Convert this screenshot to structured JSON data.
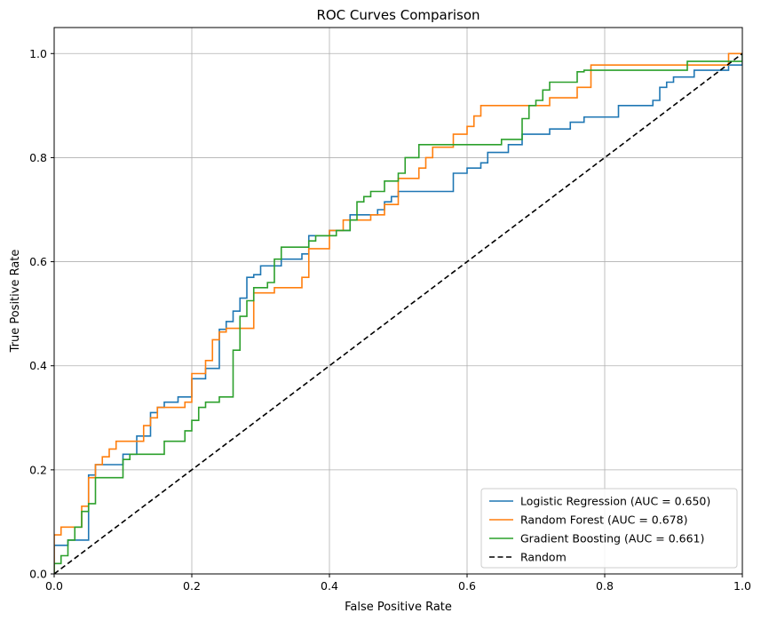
{
  "chart_data": {
    "type": "line",
    "title": "ROC Curves Comparison",
    "xlabel": "False Positive Rate",
    "ylabel": "True Positive Rate",
    "xlim": [
      0.0,
      1.0
    ],
    "ylim": [
      0.0,
      1.05
    ],
    "xticks": [
      "0.0",
      "0.2",
      "0.4",
      "0.6",
      "0.8",
      "1.0"
    ],
    "yticks": [
      "0.0",
      "0.2",
      "0.4",
      "0.6",
      "0.8",
      "1.0"
    ],
    "xtick_values": [
      0.0,
      0.2,
      0.4,
      0.6,
      0.8,
      1.0
    ],
    "ytick_values": [
      0.0,
      0.2,
      0.4,
      0.6,
      0.8,
      1.0
    ],
    "grid": true,
    "legend_position": "lower-right",
    "series": [
      {
        "name": "Logistic Regression (AUC = 0.650)",
        "color": "#1f77b4",
        "style": "solid",
        "x": [
          0.0,
          0.0,
          0.02,
          0.02,
          0.03,
          0.03,
          0.05,
          0.05,
          0.06,
          0.06,
          0.07,
          0.07,
          0.1,
          0.1,
          0.12,
          0.12,
          0.14,
          0.14,
          0.15,
          0.15,
          0.16,
          0.16,
          0.18,
          0.18,
          0.2,
          0.2,
          0.22,
          0.22,
          0.24,
          0.24,
          0.25,
          0.25,
          0.26,
          0.26,
          0.27,
          0.27,
          0.28,
          0.28,
          0.29,
          0.29,
          0.3,
          0.3,
          0.33,
          0.33,
          0.35,
          0.35,
          0.36,
          0.36,
          0.37,
          0.37,
          0.4,
          0.4,
          0.43,
          0.43,
          0.45,
          0.45,
          0.47,
          0.47,
          0.48,
          0.48,
          0.49,
          0.49,
          0.5,
          0.5,
          0.51,
          0.51,
          0.58,
          0.58,
          0.6,
          0.6,
          0.62,
          0.62,
          0.63,
          0.63,
          0.66,
          0.66,
          0.68,
          0.68,
          0.72,
          0.72,
          0.75,
          0.75,
          0.77,
          0.77,
          0.82,
          0.82,
          0.87,
          0.87,
          0.88,
          0.88,
          0.89,
          0.89,
          0.9,
          0.9,
          0.93,
          0.93,
          0.98,
          0.98,
          1.0,
          1.0
        ],
        "y": [
          0.0,
          0.055,
          0.055,
          0.065,
          0.065,
          0.065,
          0.065,
          0.19,
          0.19,
          0.21,
          0.21,
          0.21,
          0.21,
          0.23,
          0.23,
          0.265,
          0.265,
          0.31,
          0.31,
          0.32,
          0.32,
          0.33,
          0.33,
          0.34,
          0.34,
          0.375,
          0.375,
          0.395,
          0.395,
          0.47,
          0.47,
          0.485,
          0.485,
          0.505,
          0.505,
          0.53,
          0.53,
          0.57,
          0.57,
          0.575,
          0.575,
          0.592,
          0.592,
          0.605,
          0.605,
          0.605,
          0.605,
          0.615,
          0.615,
          0.65,
          0.65,
          0.66,
          0.66,
          0.69,
          0.69,
          0.69,
          0.69,
          0.7,
          0.7,
          0.715,
          0.715,
          0.725,
          0.725,
          0.735,
          0.735,
          0.735,
          0.735,
          0.77,
          0.77,
          0.78,
          0.78,
          0.79,
          0.79,
          0.81,
          0.81,
          0.825,
          0.825,
          0.845,
          0.845,
          0.855,
          0.855,
          0.868,
          0.868,
          0.878,
          0.878,
          0.9,
          0.9,
          0.91,
          0.91,
          0.935,
          0.935,
          0.945,
          0.945,
          0.955,
          0.955,
          0.968,
          0.968,
          0.978,
          0.978,
          1.0
        ]
      },
      {
        "name": "Random Forest (AUC = 0.678)",
        "color": "#ff7f0e",
        "style": "solid",
        "x": [
          0.0,
          0.0,
          0.01,
          0.01,
          0.03,
          0.03,
          0.04,
          0.04,
          0.05,
          0.05,
          0.06,
          0.06,
          0.07,
          0.07,
          0.08,
          0.08,
          0.09,
          0.09,
          0.12,
          0.12,
          0.13,
          0.13,
          0.14,
          0.14,
          0.15,
          0.15,
          0.19,
          0.19,
          0.2,
          0.2,
          0.22,
          0.22,
          0.23,
          0.23,
          0.24,
          0.24,
          0.25,
          0.25,
          0.27,
          0.27,
          0.29,
          0.29,
          0.32,
          0.32,
          0.36,
          0.36,
          0.37,
          0.37,
          0.39,
          0.39,
          0.4,
          0.4,
          0.42,
          0.42,
          0.46,
          0.46,
          0.48,
          0.48,
          0.5,
          0.5,
          0.53,
          0.53,
          0.54,
          0.54,
          0.55,
          0.55,
          0.58,
          0.58,
          0.6,
          0.6,
          0.61,
          0.61,
          0.62,
          0.62,
          0.66,
          0.66,
          0.72,
          0.72,
          0.76,
          0.76,
          0.78,
          0.78,
          0.92,
          0.92,
          0.98,
          0.98,
          1.0,
          1.0
        ],
        "y": [
          0.0,
          0.075,
          0.075,
          0.09,
          0.09,
          0.09,
          0.09,
          0.13,
          0.13,
          0.185,
          0.185,
          0.21,
          0.21,
          0.225,
          0.225,
          0.24,
          0.24,
          0.255,
          0.255,
          0.255,
          0.255,
          0.285,
          0.285,
          0.3,
          0.3,
          0.32,
          0.32,
          0.33,
          0.33,
          0.385,
          0.385,
          0.41,
          0.41,
          0.45,
          0.45,
          0.465,
          0.465,
          0.472,
          0.472,
          0.472,
          0.472,
          0.54,
          0.54,
          0.55,
          0.55,
          0.57,
          0.57,
          0.625,
          0.625,
          0.625,
          0.625,
          0.66,
          0.66,
          0.68,
          0.68,
          0.69,
          0.69,
          0.71,
          0.71,
          0.76,
          0.76,
          0.78,
          0.78,
          0.8,
          0.8,
          0.82,
          0.82,
          0.845,
          0.845,
          0.86,
          0.86,
          0.88,
          0.88,
          0.9,
          0.9,
          0.9,
          0.9,
          0.915,
          0.915,
          0.935,
          0.935,
          0.978,
          0.978,
          0.978,
          0.978,
          1.0,
          1.0,
          1.0
        ]
      },
      {
        "name": "Gradient Boosting (AUC = 0.661)",
        "color": "#2ca02c",
        "style": "solid",
        "x": [
          0.0,
          0.0,
          0.01,
          0.01,
          0.02,
          0.02,
          0.03,
          0.03,
          0.04,
          0.04,
          0.05,
          0.05,
          0.06,
          0.06,
          0.1,
          0.1,
          0.11,
          0.11,
          0.16,
          0.16,
          0.19,
          0.19,
          0.2,
          0.2,
          0.21,
          0.21,
          0.22,
          0.22,
          0.23,
          0.23,
          0.24,
          0.24,
          0.26,
          0.26,
          0.27,
          0.27,
          0.28,
          0.28,
          0.29,
          0.29,
          0.31,
          0.31,
          0.32,
          0.32,
          0.33,
          0.33,
          0.37,
          0.37,
          0.38,
          0.38,
          0.41,
          0.41,
          0.43,
          0.43,
          0.44,
          0.44,
          0.45,
          0.45,
          0.46,
          0.46,
          0.48,
          0.48,
          0.5,
          0.5,
          0.51,
          0.51,
          0.53,
          0.53,
          0.54,
          0.54,
          0.65,
          0.65,
          0.68,
          0.68,
          0.69,
          0.69,
          0.7,
          0.7,
          0.71,
          0.71,
          0.72,
          0.72,
          0.73,
          0.73,
          0.76,
          0.76,
          0.77,
          0.77,
          0.82,
          0.82,
          0.88,
          0.88,
          0.92,
          0.92,
          0.96,
          0.96,
          1.0,
          1.0
        ],
        "y": [
          0.0,
          0.02,
          0.02,
          0.035,
          0.035,
          0.065,
          0.065,
          0.09,
          0.09,
          0.12,
          0.12,
          0.135,
          0.135,
          0.185,
          0.185,
          0.22,
          0.22,
          0.23,
          0.23,
          0.255,
          0.255,
          0.275,
          0.275,
          0.295,
          0.295,
          0.32,
          0.32,
          0.33,
          0.33,
          0.33,
          0.33,
          0.34,
          0.34,
          0.43,
          0.43,
          0.495,
          0.495,
          0.525,
          0.525,
          0.55,
          0.55,
          0.56,
          0.56,
          0.605,
          0.605,
          0.628,
          0.628,
          0.64,
          0.64,
          0.65,
          0.65,
          0.66,
          0.66,
          0.68,
          0.68,
          0.715,
          0.715,
          0.725,
          0.725,
          0.735,
          0.735,
          0.755,
          0.755,
          0.77,
          0.77,
          0.8,
          0.8,
          0.825,
          0.825,
          0.825,
          0.825,
          0.835,
          0.835,
          0.875,
          0.875,
          0.9,
          0.9,
          0.91,
          0.91,
          0.93,
          0.93,
          0.945,
          0.945,
          0.945,
          0.945,
          0.965,
          0.965,
          0.968,
          0.968,
          0.968,
          0.968,
          0.968,
          0.968,
          0.985,
          0.985,
          0.985,
          0.985,
          1.0
        ]
      },
      {
        "name": "Random",
        "color": "#000000",
        "style": "dashed",
        "x": [
          0.0,
          1.0
        ],
        "y": [
          0.0,
          1.0
        ]
      }
    ]
  }
}
